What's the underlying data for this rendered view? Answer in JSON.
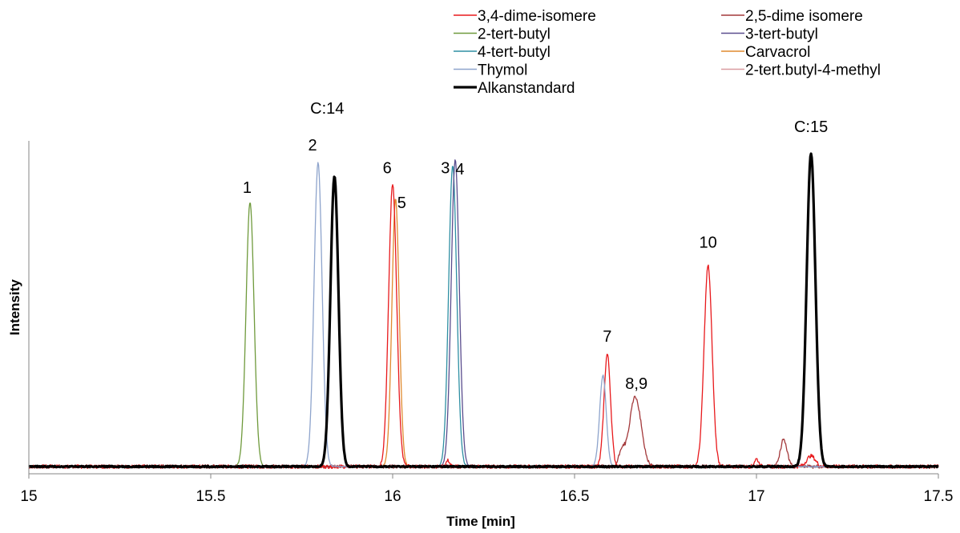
{
  "chart_data": {
    "type": "line",
    "title": "",
    "xlabel": "Time [min]",
    "ylabel": "Intensity",
    "xlim": [
      15,
      17.5
    ],
    "ylim": [
      0,
      1
    ],
    "x_ticks": [
      15,
      15.5,
      16,
      16.5,
      17,
      17.5
    ],
    "x_tick_labels": [
      "15",
      "15.5",
      "16",
      "16.5",
      "17",
      "17.5"
    ],
    "grid": false,
    "legend_position": "top-right",
    "series": [
      {
        "name": "3,4-dime-isomere",
        "color": "#e8191c",
        "width": 1.3,
        "peaks": [
          {
            "t": 16.0,
            "h": 0.93,
            "w": 0.011
          },
          {
            "t": 16.59,
            "h": 0.37,
            "w": 0.009
          },
          {
            "t": 16.867,
            "h": 0.66,
            "w": 0.011
          },
          {
            "t": 16.152,
            "h": 0.02,
            "w": 0.005
          },
          {
            "t": 17.15,
            "h": 0.035,
            "w": 0.012
          },
          {
            "t": 17.0,
            "h": 0.025,
            "w": 0.006
          }
        ]
      },
      {
        "name": "2,5-dime isomere",
        "color": "#a3383a",
        "width": 1.3,
        "peaks": [
          {
            "t": 16.667,
            "h": 0.23,
            "w": 0.016
          },
          {
            "t": 16.63,
            "h": 0.05,
            "w": 0.008
          },
          {
            "t": 17.075,
            "h": 0.09,
            "w": 0.009
          }
        ]
      },
      {
        "name": "2-tert-butyl",
        "color": "#6f9a3c",
        "width": 1.3,
        "peaks": [
          {
            "t": 15.608,
            "h": 0.87,
            "w": 0.011
          }
        ]
      },
      {
        "name": "3-tert-butyl",
        "color": "#5a4d8e",
        "width": 1.3,
        "peaks": [
          {
            "t": 16.172,
            "h": 1.01,
            "w": 0.011
          }
        ]
      },
      {
        "name": "4-tert-butyl",
        "color": "#2e8fa3",
        "width": 1.3,
        "peaks": [
          {
            "t": 16.165,
            "h": 0.99,
            "w": 0.011
          }
        ]
      },
      {
        "name": "Carvacrol",
        "color": "#e08a2e",
        "width": 1.3,
        "peaks": [
          {
            "t": 16.008,
            "h": 0.88,
            "w": 0.01
          }
        ]
      },
      {
        "name": "Thymol",
        "color": "#8ea4cc",
        "width": 1.3,
        "peaks": [
          {
            "t": 15.795,
            "h": 1.0,
            "w": 0.011
          },
          {
            "t": 16.578,
            "h": 0.3,
            "w": 0.009
          }
        ]
      },
      {
        "name": "2-tert.butyl-4-methyl",
        "color": "#d99ba0",
        "width": 1.3,
        "peaks": []
      },
      {
        "name": "Alkanstandard",
        "color": "#000000",
        "width": 3.2,
        "peaks": [
          {
            "t": 15.84,
            "h": 0.955,
            "w": 0.011
          },
          {
            "t": 17.15,
            "h": 1.03,
            "w": 0.012
          }
        ]
      }
    ],
    "annotations": [
      {
        "text": "1",
        "x": 15.6,
        "y": 0.9
      },
      {
        "text": "2",
        "x": 15.78,
        "y": 1.04
      },
      {
        "text": "C:14",
        "x": 15.82,
        "y": 1.16
      },
      {
        "text": "6",
        "x": 15.985,
        "y": 0.965
      },
      {
        "text": "5",
        "x": 16.025,
        "y": 0.85
      },
      {
        "text": "3",
        "x": 16.145,
        "y": 0.965
      },
      {
        "text": "4",
        "x": 16.185,
        "y": 0.96
      },
      {
        "text": "7",
        "x": 16.59,
        "y": 0.41
      },
      {
        "text": "8,9",
        "x": 16.67,
        "y": 0.255
      },
      {
        "text": "10",
        "x": 16.867,
        "y": 0.72
      },
      {
        "text": "C:15",
        "x": 17.15,
        "y": 1.1
      }
    ]
  }
}
